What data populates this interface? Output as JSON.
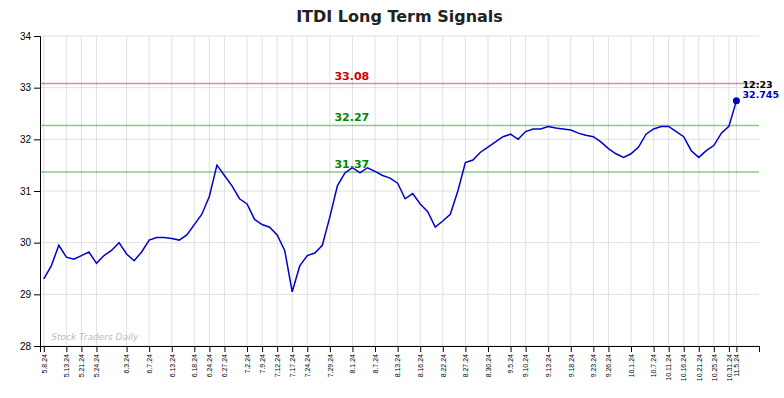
{
  "chart_data": {
    "type": "line",
    "title": "ITDI Long Term Signals",
    "categories": [
      "5.8.24",
      null,
      null,
      "5.13.24",
      null,
      "5.21.24",
      null,
      "5.24.24",
      null,
      null,
      null,
      "6.3.24",
      null,
      null,
      "6.7.24",
      null,
      null,
      "6.13.24",
      null,
      null,
      "6.18.24",
      null,
      "6.24.24",
      null,
      "6.27.24",
      null,
      null,
      "7.2.24",
      null,
      "7.9.24",
      null,
      "7.12.24",
      null,
      "7.17.24",
      null,
      "7.24.24",
      null,
      null,
      "7.29.24",
      null,
      null,
      "8.1.24",
      null,
      null,
      "8.7.24",
      null,
      null,
      "8.13.24",
      null,
      null,
      "8.16.24",
      null,
      null,
      "8.22.24",
      null,
      null,
      "8.27.24",
      null,
      null,
      "8.30.24",
      null,
      null,
      "9.5.24",
      null,
      "9.10.24",
      null,
      null,
      "9.13.24",
      null,
      null,
      "9.18.24",
      null,
      null,
      "9.23.24",
      null,
      "9.26.24",
      null,
      null,
      "10.1.24",
      null,
      null,
      "10.7.24",
      null,
      "10.11.24",
      null,
      "10.16.24",
      null,
      "10.21.24",
      null,
      "10.25.24",
      null,
      "10.31.24",
      "11.5.24"
    ],
    "values": [
      29.3,
      29.55,
      29.95,
      29.72,
      29.68,
      29.75,
      29.82,
      29.6,
      29.75,
      29.85,
      30.0,
      29.78,
      29.65,
      29.82,
      30.05,
      30.1,
      30.1,
      30.08,
      30.05,
      30.15,
      30.35,
      30.55,
      30.9,
      31.5,
      31.3,
      31.1,
      30.85,
      30.75,
      30.45,
      30.35,
      30.3,
      30.15,
      29.85,
      29.05,
      29.55,
      29.75,
      29.8,
      29.95,
      30.5,
      31.1,
      31.35,
      31.45,
      31.35,
      31.45,
      31.38,
      31.3,
      31.25,
      31.15,
      30.85,
      30.95,
      30.75,
      30.6,
      30.3,
      30.42,
      30.55,
      31.0,
      31.55,
      31.6,
      31.75,
      31.85,
      31.95,
      32.05,
      32.1,
      32.0,
      32.15,
      32.2,
      32.2,
      32.25,
      32.22,
      32.2,
      32.18,
      32.12,
      32.08,
      32.05,
      31.95,
      31.82,
      31.72,
      31.65,
      31.72,
      31.85,
      32.1,
      32.2,
      32.25,
      32.25,
      32.15,
      32.05,
      31.78,
      31.65,
      31.78,
      31.88,
      32.12,
      32.25,
      32.745
    ],
    "color": "#0000cc",
    "ylim": [
      28,
      34
    ],
    "yticks": [
      28,
      29,
      30,
      31,
      32,
      33,
      34
    ],
    "grid": true,
    "hlines": [
      {
        "value": 33.08,
        "label": "33.08",
        "color": "#cc0000"
      },
      {
        "value": 32.27,
        "label": "32.27",
        "color": "#008800"
      },
      {
        "value": 31.37,
        "label": "31.37",
        "color": "#008800"
      }
    ],
    "annotations": [
      {
        "text": "12:23",
        "color": "#000000"
      },
      {
        "text": "32.745",
        "color": "#0000cc"
      }
    ],
    "watermark": "Stock Traders Daily"
  }
}
